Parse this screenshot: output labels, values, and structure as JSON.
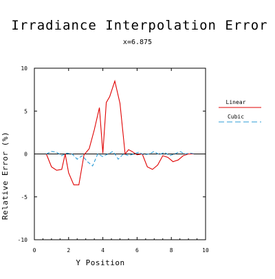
{
  "chart_data": {
    "type": "line",
    "title": "Irradiance Interpolation Error",
    "subtitle": "x=6.875",
    "xlabel": "Y Position",
    "ylabel": "Relative Error (%)",
    "xlim": [
      0,
      10
    ],
    "ylim": [
      -10,
      10
    ],
    "x_ticks": [
      0,
      2,
      4,
      6,
      8,
      10
    ],
    "y_ticks": [
      -10,
      -5,
      0,
      5,
      10
    ],
    "grid": false,
    "legend_position": "right",
    "zero_line": true,
    "series": [
      {
        "name": "Linear",
        "color": "#e00000",
        "dash": "solid",
        "x": [
          0.7,
          1.0,
          1.3,
          1.6,
          1.8,
          2.0,
          2.3,
          2.6,
          2.9,
          3.2,
          3.5,
          3.8,
          4.0,
          4.2,
          4.4,
          4.7,
          5.0,
          5.3,
          5.5,
          5.7,
          6.0,
          6.3,
          6.6,
          6.9,
          7.2,
          7.5,
          7.8,
          8.1,
          8.4,
          8.7,
          9.0,
          9.3
        ],
        "values": [
          0.0,
          -1.5,
          -1.9,
          -1.8,
          0.0,
          -2.2,
          -3.6,
          -3.6,
          -0.1,
          0.6,
          2.8,
          5.4,
          0.1,
          6.0,
          6.7,
          8.5,
          5.9,
          0.0,
          0.5,
          0.3,
          -0.1,
          0.0,
          -1.5,
          -1.8,
          -1.3,
          -0.2,
          -0.4,
          -0.9,
          -0.7,
          -0.2,
          0.0,
          0.0
        ]
      },
      {
        "name": "Cubic",
        "color": "#2b9bd6",
        "dash": "dashed",
        "x": [
          0.7,
          1.0,
          1.3,
          1.6,
          1.9,
          2.2,
          2.5,
          2.8,
          3.1,
          3.4,
          3.7,
          4.0,
          4.3,
          4.6,
          4.9,
          5.2,
          5.5,
          5.8,
          6.1,
          6.4,
          6.7,
          7.0,
          7.3,
          7.6,
          7.9,
          8.2,
          8.5,
          8.8,
          9.1,
          9.4
        ],
        "values": [
          0.0,
          0.3,
          0.2,
          -0.2,
          0.1,
          0.0,
          -0.6,
          -0.2,
          -0.9,
          -1.4,
          0.0,
          -0.3,
          0.0,
          0.3,
          -0.6,
          0.0,
          -0.2,
          0.0,
          0.2,
          -0.1,
          0.0,
          0.3,
          -0.1,
          0.2,
          -0.2,
          0.0,
          0.3,
          0.0,
          0.1,
          0.0
        ]
      }
    ]
  }
}
